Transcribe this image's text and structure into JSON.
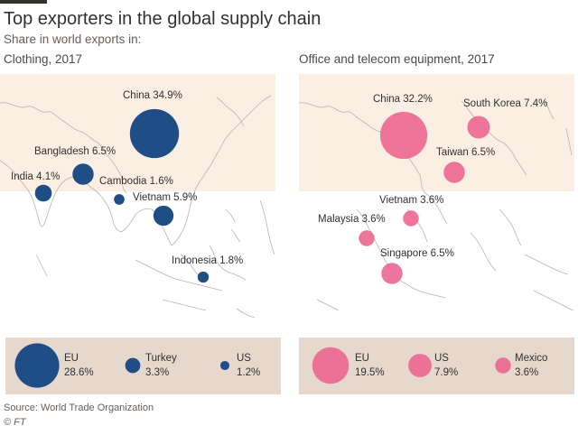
{
  "header": {
    "title": "Top exporters in the global supply chain",
    "subtitle": "Share in world exports in:"
  },
  "footer": {
    "source": "Source: World Trade Organization",
    "credit": "© FT"
  },
  "colors": {
    "clothing": "#1f4e86",
    "electronics": "#ec6691",
    "highlight_region": "#fbeee3",
    "legend_bg": "#e6d8cc",
    "coastline": "#bdb3ac"
  },
  "chart_data": [
    {
      "type": "map-bubble",
      "panel_title": "Clothing, 2017",
      "unit": "%",
      "map_points": [
        {
          "name": "China",
          "value": 34.9,
          "label": "China 34.9%"
        },
        {
          "name": "Bangladesh",
          "value": 6.5,
          "label": "Bangladesh 6.5%"
        },
        {
          "name": "India",
          "value": 4.1,
          "label": "India 4.1%"
        },
        {
          "name": "Cambodia",
          "value": 1.6,
          "label": "Cambodia 1.6%"
        },
        {
          "name": "Vietnam",
          "value": 5.9,
          "label": "Vietnam 5.9%"
        },
        {
          "name": "Indonesia",
          "value": 1.8,
          "label": "Indonesia 1.8%"
        }
      ],
      "legend_points": [
        {
          "name": "EU",
          "value": 28.6,
          "value_label": "28.6%"
        },
        {
          "name": "Turkey",
          "value": 3.3,
          "value_label": "3.3%"
        },
        {
          "name": "US",
          "value": 1.2,
          "value_label": "1.2%"
        }
      ]
    },
    {
      "type": "map-bubble",
      "panel_title": "Office and telecom equipment, 2017",
      "unit": "%",
      "map_points": [
        {
          "name": "China",
          "value": 32.2,
          "label": "China 32.2%"
        },
        {
          "name": "South Korea",
          "value": 7.4,
          "label": "South Korea 7.4%"
        },
        {
          "name": "Taiwan",
          "value": 6.5,
          "label": "Taiwan 6.5%"
        },
        {
          "name": "Vietnam",
          "value": 3.6,
          "label": "Vietnam 3.6%"
        },
        {
          "name": "Malaysia",
          "value": 3.6,
          "label": "Malaysia 3.6%"
        },
        {
          "name": "Singapore",
          "value": 6.5,
          "label": "Singapore 6.5%"
        }
      ],
      "legend_points": [
        {
          "name": "EU",
          "value": 19.5,
          "value_label": "19.5%"
        },
        {
          "name": "US",
          "value": 7.9,
          "value_label": "7.9%"
        },
        {
          "name": "Mexico",
          "value": 3.6,
          "value_label": "3.6%"
        }
      ]
    }
  ]
}
